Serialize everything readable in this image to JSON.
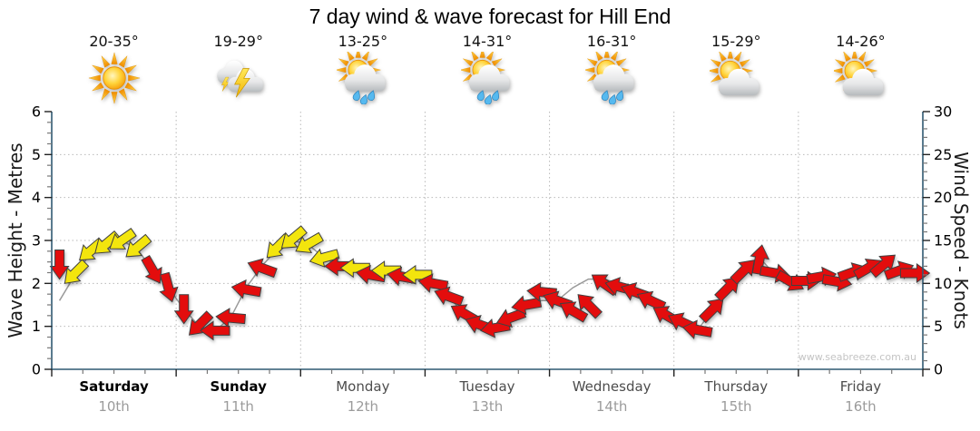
{
  "title": "7 day wind & wave forecast for Hill End",
  "watermark": "www.seabreeze.com.au",
  "days": [
    {
      "name": "Saturday",
      "date": "10th",
      "temp": "20-35°",
      "icon": "sunny",
      "weekend": true
    },
    {
      "name": "Sunday",
      "date": "11th",
      "temp": "19-29°",
      "icon": "storm",
      "weekend": true
    },
    {
      "name": "Monday",
      "date": "12th",
      "temp": "13-25°",
      "icon": "sun-showers",
      "weekend": false
    },
    {
      "name": "Tuesday",
      "date": "13th",
      "temp": "14-31°",
      "icon": "sun-showers",
      "weekend": false
    },
    {
      "name": "Wednesday",
      "date": "14th",
      "temp": "16-31°",
      "icon": "sun-showers",
      "weekend": false
    },
    {
      "name": "Thursday",
      "date": "15th",
      "temp": "15-29°",
      "icon": "partly-cloudy",
      "weekend": false
    },
    {
      "name": "Friday",
      "date": "16th",
      "temp": "14-26°",
      "icon": "partly-cloudy",
      "weekend": false
    }
  ],
  "chart_data": {
    "type": "wind-arrow-series",
    "title": "7 day wind & wave forecast for Hill End",
    "categories": [
      "Saturday 10th",
      "Sunday 11th",
      "Monday 12th",
      "Tuesday 13th",
      "Wednesday 14th",
      "Thursday 15th",
      "Friday 16th"
    ],
    "points_per_day": 8,
    "grid": true,
    "left_axis": {
      "label": "Wave Height - Metres",
      "min": 0,
      "max": 6,
      "major_step": 1,
      "minor_step": 0.25
    },
    "right_axis": {
      "label": "Wind Speed - Knots",
      "min": 0,
      "max": 30,
      "major_step": 5,
      "minor_step": 1
    },
    "colors": {
      "y": "#f3e50b",
      "r": "#e31111",
      "outline": "#3f3f3f",
      "axis": "#2f5972",
      "grid": "#b9b9b9",
      "wave_line": "#9a9a9a"
    },
    "wind_points": [
      {
        "k": 12.2,
        "d": 90,
        "c": "r"
      },
      {
        "k": 11.2,
        "d": 135,
        "c": "y"
      },
      {
        "k": 13.8,
        "d": 140,
        "c": "y"
      },
      {
        "k": 14.6,
        "d": 140,
        "c": "y"
      },
      {
        "k": 15.0,
        "d": 145,
        "c": "y"
      },
      {
        "k": 14.2,
        "d": 140,
        "c": "y"
      },
      {
        "k": 11.5,
        "d": 60,
        "c": "r"
      },
      {
        "k": 9.5,
        "d": 75,
        "c": "r"
      },
      {
        "k": 7.0,
        "d": 90,
        "c": "r"
      },
      {
        "k": 5.2,
        "d": 135,
        "c": "r"
      },
      {
        "k": 4.5,
        "d": 180,
        "c": "r"
      },
      {
        "k": 6.0,
        "d": 185,
        "c": "r"
      },
      {
        "k": 9.3,
        "d": 190,
        "c": "r"
      },
      {
        "k": 11.8,
        "d": 200,
        "c": "r"
      },
      {
        "k": 14.2,
        "d": 135,
        "c": "y"
      },
      {
        "k": 15.2,
        "d": 140,
        "c": "y"
      },
      {
        "k": 14.6,
        "d": 150,
        "c": "y"
      },
      {
        "k": 13.0,
        "d": 165,
        "c": "y"
      },
      {
        "k": 12.0,
        "d": 180,
        "c": "r"
      },
      {
        "k": 11.8,
        "d": 180,
        "c": "y"
      },
      {
        "k": 11.0,
        "d": 190,
        "c": "r"
      },
      {
        "k": 11.5,
        "d": 180,
        "c": "y"
      },
      {
        "k": 10.8,
        "d": 190,
        "c": "r"
      },
      {
        "k": 11.0,
        "d": 180,
        "c": "y"
      },
      {
        "k": 10.0,
        "d": 190,
        "c": "r"
      },
      {
        "k": 8.5,
        "d": 200,
        "c": "r"
      },
      {
        "k": 6.5,
        "d": 210,
        "c": "r"
      },
      {
        "k": 5.2,
        "d": 200,
        "c": "r"
      },
      {
        "k": 4.8,
        "d": 170,
        "c": "r"
      },
      {
        "k": 6.0,
        "d": 160,
        "c": "r"
      },
      {
        "k": 7.5,
        "d": 170,
        "c": "r"
      },
      {
        "k": 9.0,
        "d": 185,
        "c": "r"
      },
      {
        "k": 8.0,
        "d": 200,
        "c": "r"
      },
      {
        "k": 6.8,
        "d": 210,
        "c": "r"
      },
      {
        "k": 7.5,
        "d": 225,
        "c": "r"
      },
      {
        "k": 10.0,
        "d": 215,
        "c": "r"
      },
      {
        "k": 9.6,
        "d": 195,
        "c": "r"
      },
      {
        "k": 9.0,
        "d": 200,
        "c": "r"
      },
      {
        "k": 8.0,
        "d": 205,
        "c": "r"
      },
      {
        "k": 6.3,
        "d": 210,
        "c": "r"
      },
      {
        "k": 5.5,
        "d": 205,
        "c": "r"
      },
      {
        "k": 4.6,
        "d": 190,
        "c": "r"
      },
      {
        "k": 7.0,
        "d": 315,
        "c": "r"
      },
      {
        "k": 9.5,
        "d": 315,
        "c": "r"
      },
      {
        "k": 11.5,
        "d": 315,
        "c": "r"
      },
      {
        "k": 12.8,
        "d": 280,
        "c": "r"
      },
      {
        "k": 11.2,
        "d": 10,
        "c": "r"
      },
      {
        "k": 10.2,
        "d": 30,
        "c": "r"
      },
      {
        "k": 10.3,
        "d": 0,
        "c": "r"
      },
      {
        "k": 10.8,
        "d": 350,
        "c": "r"
      },
      {
        "k": 10.2,
        "d": 10,
        "c": "r"
      },
      {
        "k": 11.3,
        "d": 340,
        "c": "r"
      },
      {
        "k": 11.8,
        "d": 330,
        "c": "r"
      },
      {
        "k": 12.2,
        "d": 320,
        "c": "r"
      },
      {
        "k": 11.5,
        "d": 340,
        "c": "r"
      },
      {
        "k": 11.2,
        "d": 0,
        "c": "r"
      }
    ],
    "wave_metres": [
      1.6,
      2.2,
      2.7,
      2.9,
      3.0,
      2.8,
      2.3,
      1.9,
      1.4,
      1.0,
      0.9,
      1.2,
      1.9,
      2.4,
      2.8,
      3.0,
      2.9,
      2.6,
      2.4,
      2.4,
      2.2,
      2.3,
      2.2,
      2.2,
      2.0,
      1.7,
      1.3,
      1.0,
      1.0,
      1.2,
      1.5,
      1.6,
      1.6,
      1.9,
      2.1,
      2.1,
      2.0,
      1.8,
      1.6,
      1.3,
      1.1,
      0.9,
      1.4,
      1.9,
      2.3,
      2.6,
      2.2,
      2.0,
      2.1,
      2.2,
      2.0,
      2.3,
      2.4,
      2.4,
      2.3,
      2.2
    ]
  }
}
